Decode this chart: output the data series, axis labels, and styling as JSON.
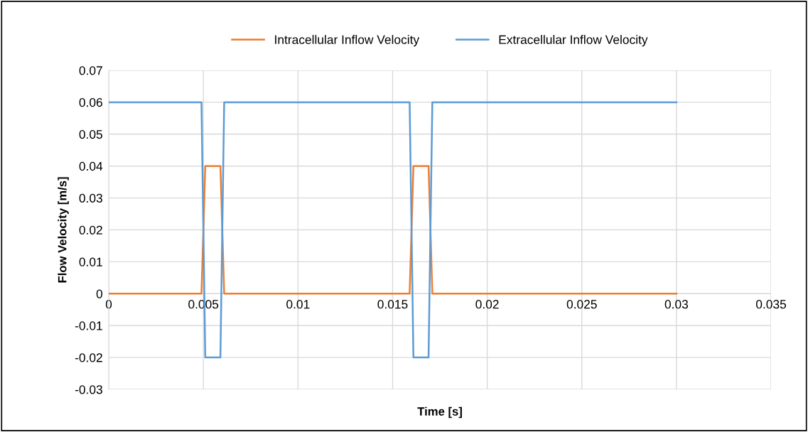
{
  "chart_data": {
    "type": "line",
    "xlabel": "Time [s]",
    "ylabel": "Flow Velocity [m/s]",
    "x": [
      0,
      0.0049,
      0.0051,
      0.0059,
      0.0061,
      0.0159,
      0.0161,
      0.0169,
      0.0171,
      0.03
    ],
    "series": [
      {
        "name": "Intracellular Inflow Velocity",
        "color": "#ed7d31",
        "values": [
          0,
          0,
          0.04,
          0.04,
          0,
          0,
          0.04,
          0.04,
          0,
          0
        ]
      },
      {
        "name": "Extracellular Inflow Velocity",
        "color": "#5b9bd5",
        "values": [
          0.06,
          0.06,
          -0.02,
          -0.02,
          0.06,
          0.06,
          -0.02,
          -0.02,
          0.06,
          0.06
        ]
      }
    ],
    "xlim": [
      0,
      0.035
    ],
    "xticks": [
      0,
      0.005,
      0.01,
      0.015,
      0.02,
      0.025,
      0.03,
      0.035
    ],
    "ylim": [
      -0.03,
      0.07
    ],
    "yticks": [
      -0.03,
      -0.02,
      -0.01,
      0,
      0.01,
      0.02,
      0.03,
      0.04,
      0.05,
      0.06,
      0.07
    ],
    "grid": true,
    "legend": "top",
    "marker": "none",
    "line_style": "solid"
  }
}
